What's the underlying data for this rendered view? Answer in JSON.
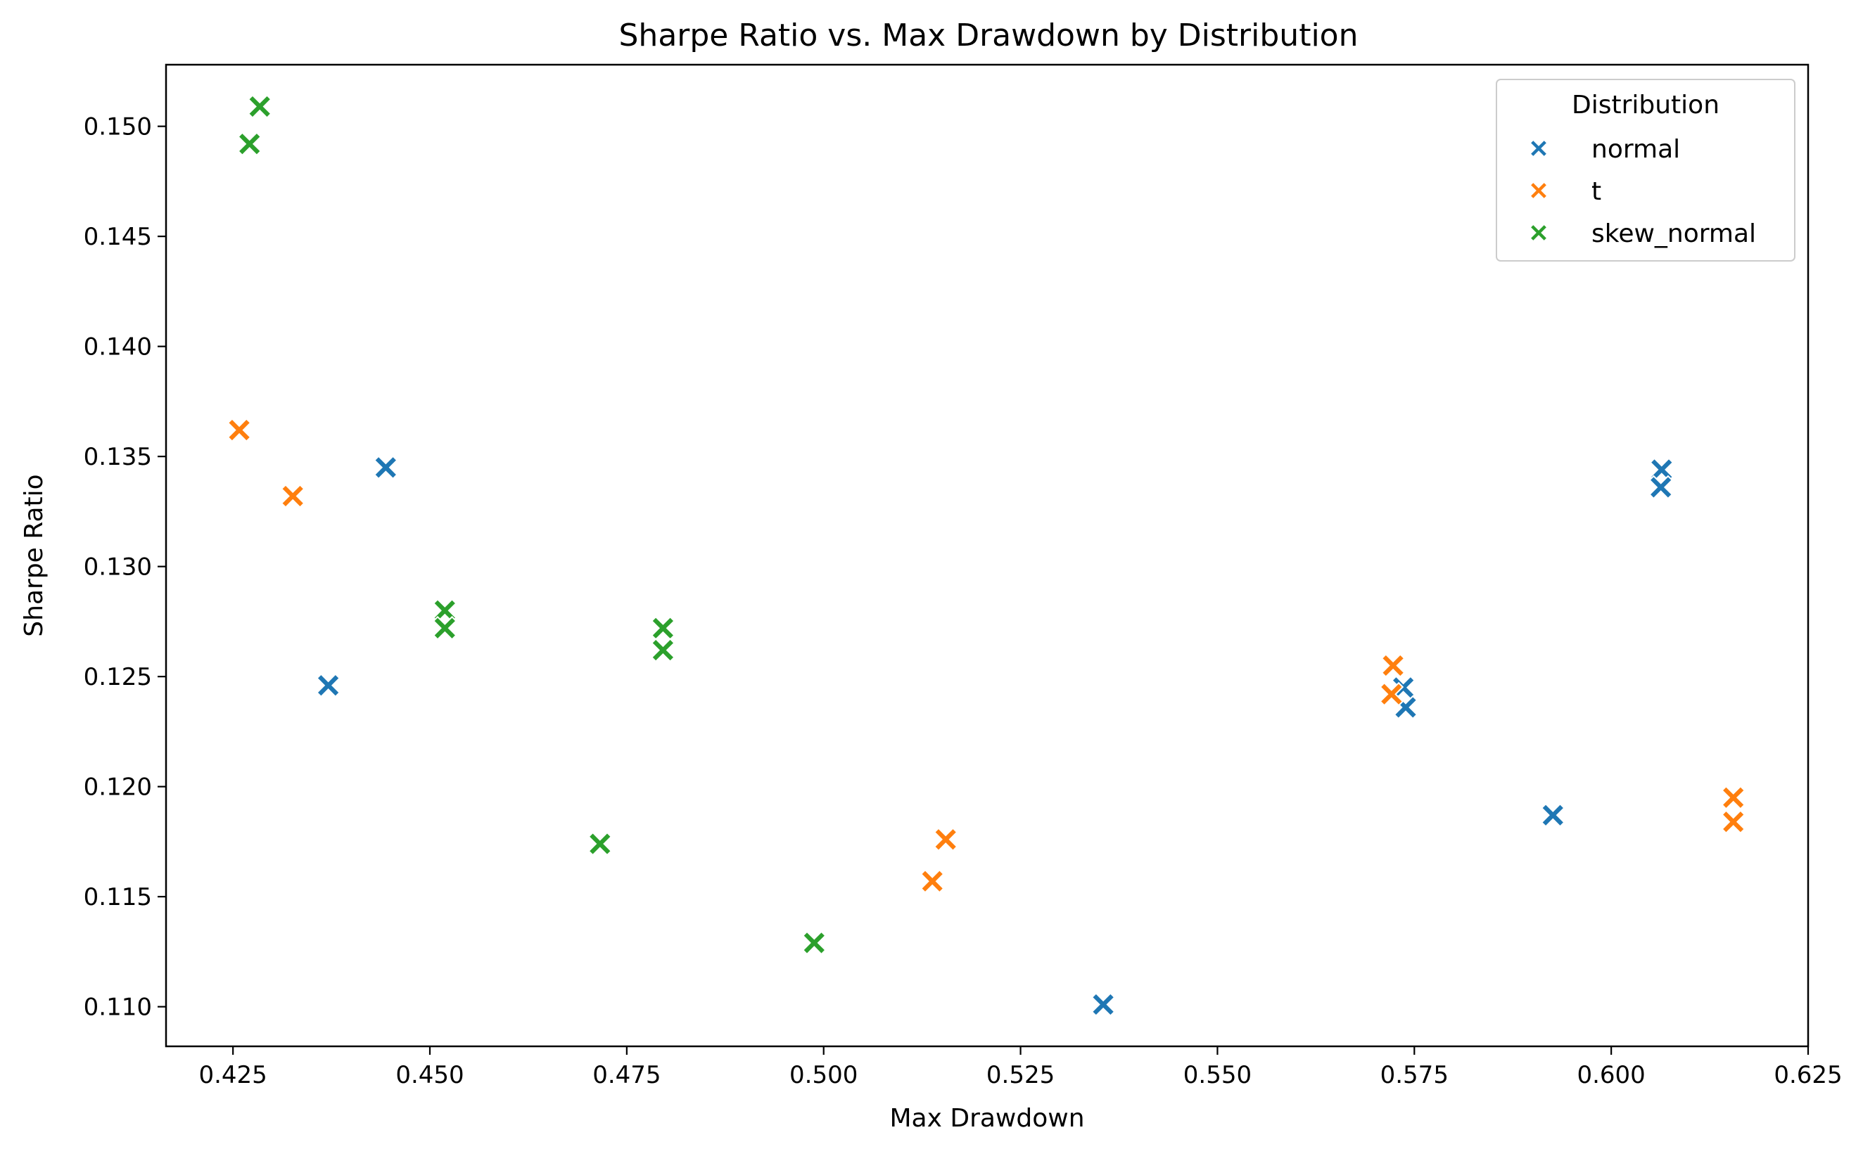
{
  "chart_data": {
    "type": "scatter",
    "title": "Sharpe Ratio vs. Max Drawdown by Distribution",
    "xlabel": "Max Drawdown",
    "ylabel": "Sharpe Ratio",
    "xlim": [
      0.4165,
      0.625
    ],
    "ylim": [
      0.1082,
      0.1528
    ],
    "xticks": [
      "0.425",
      "0.450",
      "0.475",
      "0.500",
      "0.525",
      "0.550",
      "0.575",
      "0.600",
      "0.625"
    ],
    "yticks": [
      "0.110",
      "0.115",
      "0.120",
      "0.125",
      "0.130",
      "0.135",
      "0.140",
      "0.145",
      "0.150"
    ],
    "grid": false,
    "marker": "x-filled",
    "legend": {
      "title": "Distribution",
      "position": "top-right"
    },
    "series": [
      {
        "name": "normal",
        "color": "#1f77b4",
        "points": [
          {
            "x": 0.4444,
            "y": 0.1345
          },
          {
            "x": 0.4371,
            "y": 0.1246
          },
          {
            "x": 0.5355,
            "y": 0.1101
          },
          {
            "x": 0.5736,
            "y": 0.1245
          },
          {
            "x": 0.5739,
            "y": 0.1236
          },
          {
            "x": 0.5926,
            "y": 0.1187
          },
          {
            "x": 0.6064,
            "y": 0.1344
          },
          {
            "x": 0.6063,
            "y": 0.1336
          }
        ]
      },
      {
        "name": "t",
        "color": "#ff7f0e",
        "points": [
          {
            "x": 0.4258,
            "y": 0.1362
          },
          {
            "x": 0.4326,
            "y": 0.1332
          },
          {
            "x": 0.5138,
            "y": 0.1157
          },
          {
            "x": 0.5155,
            "y": 0.1176
          },
          {
            "x": 0.5723,
            "y": 0.1255
          },
          {
            "x": 0.5721,
            "y": 0.1242
          },
          {
            "x": 0.6155,
            "y": 0.1195
          },
          {
            "x": 0.6155,
            "y": 0.1184
          }
        ]
      },
      {
        "name": "skew_normal",
        "color": "#2ca02c",
        "points": [
          {
            "x": 0.4284,
            "y": 0.1509
          },
          {
            "x": 0.4271,
            "y": 0.1492
          },
          {
            "x": 0.4519,
            "y": 0.128
          },
          {
            "x": 0.4519,
            "y": 0.1272
          },
          {
            "x": 0.4716,
            "y": 0.1174
          },
          {
            "x": 0.4796,
            "y": 0.1272
          },
          {
            "x": 0.4796,
            "y": 0.1262
          },
          {
            "x": 0.4988,
            "y": 0.1129
          }
        ]
      }
    ]
  }
}
